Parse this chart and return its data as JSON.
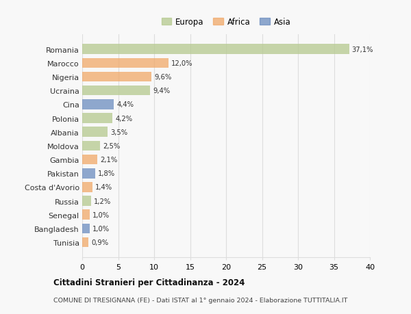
{
  "countries": [
    "Romania",
    "Marocco",
    "Nigeria",
    "Ucraina",
    "Cina",
    "Polonia",
    "Albania",
    "Moldova",
    "Gambia",
    "Pakistan",
    "Costa d'Avorio",
    "Russia",
    "Senegal",
    "Bangladesh",
    "Tunisia"
  ],
  "values": [
    37.1,
    12.0,
    9.6,
    9.4,
    4.4,
    4.2,
    3.5,
    2.5,
    2.1,
    1.8,
    1.4,
    1.2,
    1.0,
    1.0,
    0.9
  ],
  "labels": [
    "37,1%",
    "12,0%",
    "9,6%",
    "9,4%",
    "4,4%",
    "4,2%",
    "3,5%",
    "2,5%",
    "2,1%",
    "1,8%",
    "1,4%",
    "1,2%",
    "1,0%",
    "1,0%",
    "0,9%"
  ],
  "continents": [
    "Europa",
    "Africa",
    "Africa",
    "Europa",
    "Asia",
    "Europa",
    "Europa",
    "Europa",
    "Africa",
    "Asia",
    "Africa",
    "Europa",
    "Africa",
    "Asia",
    "Africa"
  ],
  "colors": {
    "Europa": "#b5c98e",
    "Africa": "#f0a868",
    "Asia": "#6b8cbf"
  },
  "legend_labels": [
    "Europa",
    "Africa",
    "Asia"
  ],
  "legend_colors": [
    "#b5c98e",
    "#f0a868",
    "#6b8cbf"
  ],
  "title": "Cittadini Stranieri per Cittadinanza - 2024",
  "subtitle": "COMUNE DI TRESIGNANA (FE) - Dati ISTAT al 1° gennaio 2024 - Elaborazione TUTTITALIA.IT",
  "xlim": [
    0,
    40
  ],
  "xticks": [
    0,
    5,
    10,
    15,
    20,
    25,
    30,
    35,
    40
  ],
  "background_color": "#f8f8f8",
  "grid_color": "#dddddd",
  "bar_alpha": 0.75,
  "bar_height": 0.72
}
